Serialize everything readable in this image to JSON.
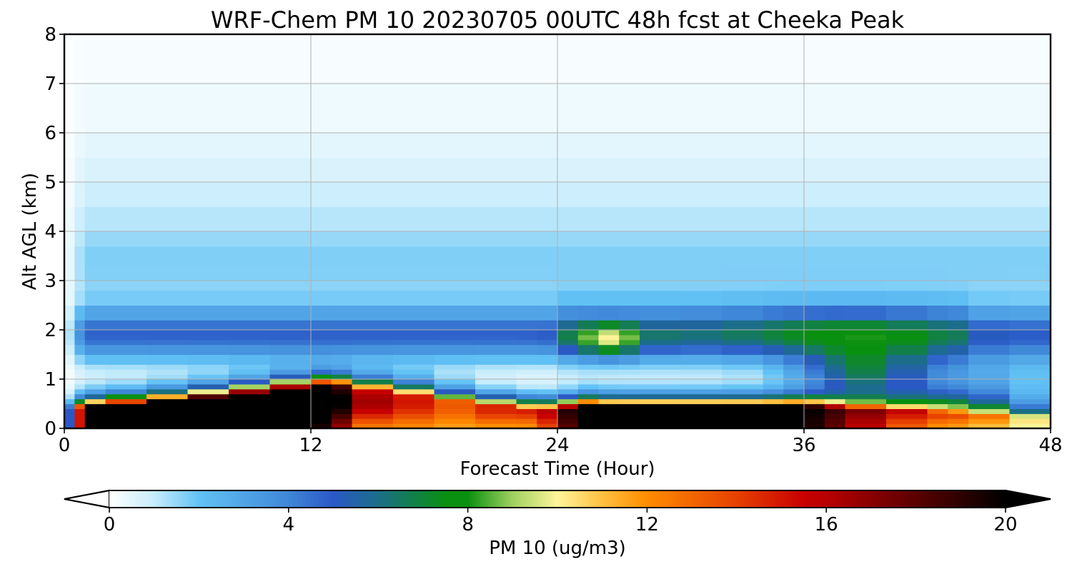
{
  "chart_data": {
    "type": "heatmap",
    "title": "WRF-Chem PM 10  20230705 00UTC 48h fcst at Cheeka Peak",
    "xlabel": "Forecast Time (Hour)",
    "ylabel": "Alt AGL (km)",
    "xlim": [
      0,
      48
    ],
    "ylim": [
      0,
      8
    ],
    "x_ticks": [
      "0",
      "12",
      "24",
      "36",
      "48"
    ],
    "y_ticks": [
      "0",
      "1",
      "2",
      "3",
      "4",
      "5",
      "6",
      "7",
      "8"
    ],
    "grid": true,
    "x": [
      0,
      0.5,
      1,
      2,
      4,
      6,
      8,
      10,
      12,
      13,
      14,
      16,
      18,
      20,
      22,
      23,
      24,
      25,
      26,
      27,
      28,
      30,
      32,
      34,
      35,
      36,
      37,
      38,
      40,
      42,
      43,
      44,
      46,
      48
    ],
    "y": [
      0,
      0.1,
      0.2,
      0.3,
      0.4,
      0.5,
      0.6,
      0.7,
      0.8,
      0.9,
      1.0,
      1.1,
      1.2,
      1.3,
      1.5,
      1.7,
      1.8,
      1.9,
      2.0,
      2.2,
      2.5,
      2.8,
      3.0,
      3.3,
      3.7,
      4.0,
      4.5,
      5.0,
      5.5,
      6.0,
      7.0,
      8.0
    ],
    "z_units": "ug/m3",
    "colorbar": {
      "label": "PM 10  (ug/m3)",
      "ticks": [
        "0",
        "4",
        "8",
        "12",
        "16",
        "20"
      ],
      "range": [
        0,
        20
      ],
      "extend": "both",
      "colormap": [
        [
          0,
          "#ffffff"
        ],
        [
          1,
          "#c6ecfb"
        ],
        [
          2,
          "#62c2f5"
        ],
        [
          4,
          "#3f87d8"
        ],
        [
          5,
          "#2a58c6"
        ],
        [
          6,
          "#1b6e88"
        ],
        [
          7.5,
          "#0a9010"
        ],
        [
          8,
          "#0a9010"
        ],
        [
          9,
          "#9fd15f"
        ],
        [
          10,
          "#fff59a"
        ],
        [
          11,
          "#ffc040"
        ],
        [
          12,
          "#ff8c00"
        ],
        [
          14,
          "#e64000"
        ],
        [
          15.5,
          "#c80000"
        ],
        [
          16,
          "#b80000"
        ],
        [
          18,
          "#5a0000"
        ],
        [
          20,
          "#000000"
        ]
      ]
    }
  }
}
